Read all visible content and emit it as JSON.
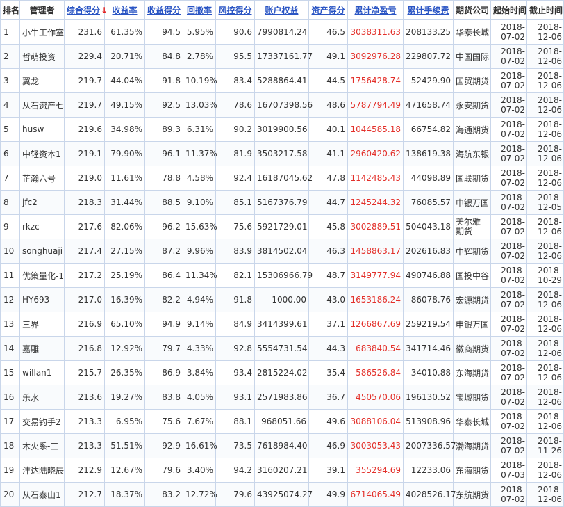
{
  "headers": [
    {
      "label": "排名"
    },
    {
      "label": "管理者"
    },
    {
      "label": "综合得分",
      "arrow": "↓"
    },
    {
      "label": "收益率"
    },
    {
      "label": "收益得分"
    },
    {
      "label": "回撤率"
    },
    {
      "label": "风控得分"
    },
    {
      "label": "账户权益"
    },
    {
      "label": "资产得分"
    },
    {
      "label": "累计净盈亏"
    },
    {
      "label": "累计手续费"
    },
    {
      "label": "期货公司"
    },
    {
      "label": "起始时间"
    },
    {
      "label": "截止时间"
    }
  ],
  "rows": [
    {
      "rank": "1",
      "manager": "小牛工作室",
      "score": "231.6",
      "return_rate": "61.35%",
      "return_score": "94.5",
      "drawdown": "5.95%",
      "risk_score": "90.6",
      "equity": "7990814.24",
      "asset_score": "46.5",
      "net_pnl": "3038311.63",
      "fees": "208133.25",
      "company": "华泰长城",
      "start_y": "2018-",
      "start_md": "07-02",
      "end_y": "2018-",
      "end_md": "12-06"
    },
    {
      "rank": "2",
      "manager": "哲萌投资",
      "score": "229.4",
      "return_rate": "20.71%",
      "return_score": "84.8",
      "drawdown": "2.78%",
      "risk_score": "95.5",
      "equity": "17337161.77",
      "asset_score": "49.1",
      "net_pnl": "3092976.28",
      "fees": "229807.72",
      "company": "中国国际",
      "start_y": "2018-",
      "start_md": "07-02",
      "end_y": "2018-",
      "end_md": "12-06"
    },
    {
      "rank": "3",
      "manager": "翼龙",
      "score": "219.7",
      "return_rate": "44.04%",
      "return_score": "91.8",
      "drawdown": "10.19%",
      "risk_score": "83.4",
      "equity": "5288864.41",
      "asset_score": "44.5",
      "net_pnl": "1756428.74",
      "fees": "52429.90",
      "company": "国贸期货",
      "start_y": "2018-",
      "start_md": "07-02",
      "end_y": "2018-",
      "end_md": "12-06"
    },
    {
      "rank": "4",
      "manager": "从石资产七",
      "score": "219.7",
      "return_rate": "49.15%",
      "return_score": "92.5",
      "drawdown": "13.03%",
      "risk_score": "78.6",
      "equity": "16707398.56",
      "asset_score": "48.6",
      "net_pnl": "5787794.49",
      "fees": "471658.74",
      "company": "永安期货",
      "start_y": "2018-",
      "start_md": "07-02",
      "end_y": "2018-",
      "end_md": "12-06"
    },
    {
      "rank": "5",
      "manager": "husw",
      "score": "219.6",
      "return_rate": "34.98%",
      "return_score": "89.3",
      "drawdown": "6.31%",
      "risk_score": "90.2",
      "equity": "3019900.56",
      "asset_score": "40.1",
      "net_pnl": "1044585.18",
      "fees": "66754.82",
      "company": "海通期货",
      "start_y": "2018-",
      "start_md": "07-02",
      "end_y": "2018-",
      "end_md": "12-06"
    },
    {
      "rank": "6",
      "manager": "中轻资本1",
      "score": "219.1",
      "return_rate": "79.90%",
      "return_score": "96.1",
      "drawdown": "11.37%",
      "risk_score": "81.9",
      "equity": "3503217.58",
      "asset_score": "41.1",
      "net_pnl": "2960420.62",
      "fees": "138619.38",
      "company": "海航东银",
      "start_y": "2018-",
      "start_md": "07-02",
      "end_y": "2018-",
      "end_md": "12-06"
    },
    {
      "rank": "7",
      "manager": "芷瀚六号",
      "score": "219.0",
      "return_rate": "11.61%",
      "return_score": "78.8",
      "drawdown": "4.58%",
      "risk_score": "92.4",
      "equity": "16187045.62",
      "asset_score": "47.8",
      "net_pnl": "1142485.43",
      "fees": "44098.89",
      "company": "国联期货",
      "start_y": "2018-",
      "start_md": "07-02",
      "end_y": "2018-",
      "end_md": "12-06"
    },
    {
      "rank": "8",
      "manager": "jfc2",
      "score": "218.3",
      "return_rate": "31.44%",
      "return_score": "88.5",
      "drawdown": "9.10%",
      "risk_score": "85.1",
      "equity": "5167376.79",
      "asset_score": "44.7",
      "net_pnl": "1245244.32",
      "fees": "76085.57",
      "company": "申银万国",
      "start_y": "2018-",
      "start_md": "07-02",
      "end_y": "2018-",
      "end_md": "12-05"
    },
    {
      "rank": "9",
      "manager": "rkzc",
      "score": "217.6",
      "return_rate": "82.06%",
      "return_score": "96.2",
      "drawdown": "15.63%",
      "risk_score": "75.6",
      "equity": "5921729.01",
      "asset_score": "45.8",
      "net_pnl": "3002889.51",
      "fees": "504043.18",
      "company": "美尔雅期货",
      "start_y": "2018-",
      "start_md": "07-02",
      "end_y": "2018-",
      "end_md": "12-06"
    },
    {
      "rank": "10",
      "manager": "songhuaji",
      "score": "217.4",
      "return_rate": "27.15%",
      "return_score": "87.2",
      "drawdown": "9.96%",
      "risk_score": "83.9",
      "equity": "3814502.04",
      "asset_score": "46.3",
      "net_pnl": "1458863.17",
      "fees": "202616.83",
      "company": "中辉期货",
      "start_y": "2018-",
      "start_md": "07-02",
      "end_y": "2018-",
      "end_md": "12-06"
    },
    {
      "rank": "11",
      "manager": "优策量化-1",
      "score": "217.2",
      "return_rate": "25.19%",
      "return_score": "86.4",
      "drawdown": "11.34%",
      "risk_score": "82.1",
      "equity": "15306966.79",
      "asset_score": "48.7",
      "net_pnl": "3149777.94",
      "fees": "490746.88",
      "company": "国投中谷",
      "start_y": "2018-",
      "start_md": "07-02",
      "end_y": "2018-",
      "end_md": "10-29"
    },
    {
      "rank": "12",
      "manager": "HY693",
      "score": "217.0",
      "return_rate": "16.39%",
      "return_score": "82.2",
      "drawdown": "4.94%",
      "risk_score": "91.8",
      "equity": "1000.00",
      "asset_score": "43.0",
      "net_pnl": "1653186.24",
      "fees": "86078.76",
      "company": "宏源期货",
      "start_y": "2018-",
      "start_md": "07-02",
      "end_y": "2018-",
      "end_md": "12-06"
    },
    {
      "rank": "13",
      "manager": "三界",
      "score": "216.9",
      "return_rate": "65.10%",
      "return_score": "94.9",
      "drawdown": "9.14%",
      "risk_score": "84.9",
      "equity": "3414399.61",
      "asset_score": "37.1",
      "net_pnl": "1266867.69",
      "fees": "259219.54",
      "company": "申银万国",
      "start_y": "2018-",
      "start_md": "07-02",
      "end_y": "2018-",
      "end_md": "12-06"
    },
    {
      "rank": "14",
      "manager": "嘉雕",
      "score": "216.8",
      "return_rate": "12.92%",
      "return_score": "79.7",
      "drawdown": "4.33%",
      "risk_score": "92.8",
      "equity": "5554731.54",
      "asset_score": "44.3",
      "net_pnl": "683840.54",
      "fees": "341714.46",
      "company": "徽商期货",
      "start_y": "2018-",
      "start_md": "07-02",
      "end_y": "2018-",
      "end_md": "12-06"
    },
    {
      "rank": "15",
      "manager": "willan1",
      "score": "215.7",
      "return_rate": "26.35%",
      "return_score": "86.9",
      "drawdown": "3.84%",
      "risk_score": "93.4",
      "equity": "2815224.02",
      "asset_score": "35.4",
      "net_pnl": "586526.84",
      "fees": "34010.88",
      "company": "东海期货",
      "start_y": "2018-",
      "start_md": "07-02",
      "end_y": "2018-",
      "end_md": "12-06"
    },
    {
      "rank": "16",
      "manager": "乐水",
      "score": "213.6",
      "return_rate": "19.27%",
      "return_score": "83.8",
      "drawdown": "4.05%",
      "risk_score": "93.1",
      "equity": "2571983.86",
      "asset_score": "36.7",
      "net_pnl": "450570.06",
      "fees": "196130.52",
      "company": "宝城期货",
      "start_y": "2018-",
      "start_md": "07-02",
      "end_y": "2018-",
      "end_md": "12-06"
    },
    {
      "rank": "17",
      "manager": "交易钓手2",
      "score": "213.3",
      "return_rate": "6.95%",
      "return_score": "75.6",
      "drawdown": "7.67%",
      "risk_score": "88.1",
      "equity": "968051.66",
      "asset_score": "49.6",
      "net_pnl": "3088106.04",
      "fees": "513908.96",
      "company": "华泰长城",
      "start_y": "2018-",
      "start_md": "07-02",
      "end_y": "2018-",
      "end_md": "12-06"
    },
    {
      "rank": "18",
      "manager": "木火系-三",
      "score": "213.3",
      "return_rate": "51.51%",
      "return_score": "92.9",
      "drawdown": "16.61%",
      "risk_score": "73.5",
      "equity": "7618984.40",
      "asset_score": "46.9",
      "net_pnl": "3003053.43",
      "fees": "2007336.57",
      "company": "渤海期货",
      "start_y": "2018-",
      "start_md": "07-02",
      "end_y": "2018-",
      "end_md": "11-26"
    },
    {
      "rank": "19",
      "manager": "沣达陆晓辰",
      "score": "212.9",
      "return_rate": "12.67%",
      "return_score": "79.6",
      "drawdown": "3.40%",
      "risk_score": "94.2",
      "equity": "3160207.21",
      "asset_score": "39.1",
      "net_pnl": "355294.69",
      "fees": "12233.06",
      "company": "东海期货",
      "start_y": "2018-",
      "start_md": "07-03",
      "end_y": "2018-",
      "end_md": "12-06"
    },
    {
      "rank": "20",
      "manager": "从石泰山1",
      "score": "212.7",
      "return_rate": "18.37%",
      "return_score": "83.2",
      "drawdown": "12.72%",
      "risk_score": "79.6",
      "equity": "43925074.27",
      "asset_score": "49.9",
      "net_pnl": "6714065.49",
      "fees": "4028526.17",
      "company": "东航期货",
      "start_y": "2018-",
      "start_md": "07-02",
      "end_y": "2018-",
      "end_md": "12-06"
    }
  ]
}
